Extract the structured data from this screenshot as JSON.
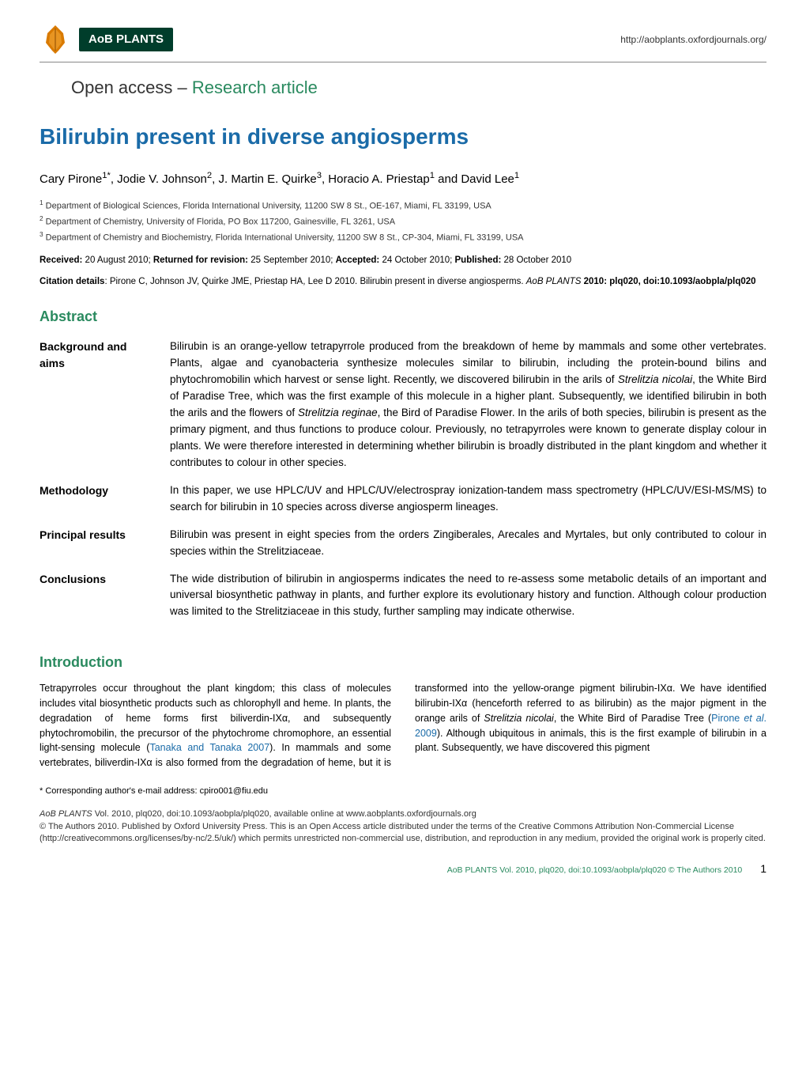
{
  "header": {
    "journal_badge": "AoB PLANTS",
    "url": "http://aobplants.oxfordjournals.org/",
    "section_prefix": "Open access – ",
    "section_highlight": "Research article",
    "leaf_colors": {
      "outer": "#d97a00",
      "inner": "#e89522"
    }
  },
  "article": {
    "title": "Bilirubin present in diverse angiosperms",
    "authors_html": "Cary Pirone<sup>1*</sup>, Jodie V. Johnson<sup>2</sup>, J. Martin E. Quirke<sup>3</sup>, Horacio A. Priestap<sup>1</sup> and David Lee<sup>1</sup>",
    "affiliations": [
      "1  Department of Biological Sciences, Florida International University, 11200 SW 8 St., OE-167, Miami, FL 33199, USA",
      "2  Department of Chemistry, University of Florida, PO Box 117200, Gainesville, FL 3261, USA",
      "3  Department of Chemistry and Biochemistry, Florida International University, 11200 SW 8 St., CP-304, Miami, FL 33199, USA"
    ],
    "dates": {
      "received": "20 August 2010",
      "returned": "25 September 2010",
      "accepted": "24 October 2010",
      "published": "28 October 2010"
    },
    "citation_prefix": "Citation details",
    "citation_text": ": Pirone C, Johnson JV, Quirke JME, Priestap HA, Lee D 2010. Bilirubin present in diverse angiosperms. ",
    "citation_journal": "AoB PLANTS",
    "citation_suffix": " 2010: plq020, doi:10.1093/aobpla/plq020"
  },
  "abstract": {
    "heading": "Abstract",
    "rows": [
      {
        "label": "Background and aims",
        "content": "Bilirubin is an orange-yellow tetrapyrrole produced from the breakdown of heme by mammals and some other vertebrates. Plants, algae and cyanobacteria synthesize molecules similar to bilirubin, including the protein-bound bilins and phytochromobilin which harvest or sense light. Recently, we discovered bilirubin in the arils of Strelitzia nicolai, the White Bird of Paradise Tree, which was the first example of this molecule in a higher plant. Subsequently, we identified bilirubin in both the arils and the flowers of Strelitzia reginae, the Bird of Paradise Flower. In the arils of both species, bilirubin is present as the primary pigment, and thus functions to produce colour. Previously, no tetrapyrroles were known to generate display colour in plants. We were therefore interested in determining whether bilirubin is broadly distributed in the plant kingdom and whether it contributes to colour in other species."
      },
      {
        "label": "Methodology",
        "content": "In this paper, we use HPLC/UV and HPLC/UV/electrospray ionization-tandem mass spectrometry (HPLC/UV/ESI-MS/MS) to search for bilirubin in 10 species across diverse angiosperm lineages."
      },
      {
        "label": "Principal results",
        "content": "Bilirubin was present in eight species from the orders Zingiberales, Arecales and Myrtales, but only contributed to colour in species within the Strelitziaceae."
      },
      {
        "label": "Conclusions",
        "content": "The wide distribution of bilirubin in angiosperms indicates the need to re-assess some metabolic details of an important and universal biosynthetic pathway in plants, and further explore its evolutionary history and function. Although colour production was limited to the Strelitziaceae in this study, further sampling may indicate otherwise."
      }
    ]
  },
  "intro": {
    "heading": "Introduction",
    "body_html": "Tetrapyrroles occur throughout the plant kingdom; this class of molecules includes vital biosynthetic products such as chlorophyll and heme. In plants, the degradation of heme forms first biliverdin-IXα, and subsequently phytochromobilin, the precursor of the phytochrome chromophore, an essential light-sensing molecule (<span class=\"ref-link\">Tanaka and Tanaka 2007</span>). In mammals and some vertebrates, biliverdin-IXα is also formed from the degradation of heme, but it is transformed into the yellow-orange pigment bilirubin-IXα. We have identified bilirubin-IXα (henceforth referred to as bilirubin) as the major pigment in the orange arils of <span class=\"italic\">Strelitzia nicolai</span>, the White Bird of Paradise Tree (<span class=\"ref-link\">Pirone <span class=\"italic\">et al</span>. 2009</span>). Although ubiquitous in animals, this is the first example of bilirubin in a plant. Subsequently, we have discovered this pigment"
  },
  "corresponding": "* Corresponding author's e-mail address: cpiro001@fiu.edu",
  "footer_citation": "AoB PLANTS Vol. 2010, plq020, doi:10.1093/aobpla/plq020, available online at www.aobplants.oxfordjournals.org\n© The Authors 2010. Published by Oxford University Press. This is an Open Access article distributed under the terms of the Creative Commons Attribution Non-Commercial License (http://creativecommons.org/licenses/by-nc/2.5/uk/) which permits unrestricted non-commercial use, distribution, and reproduction in any medium, provided the original work is properly cited.",
  "page_footer": {
    "text": "AoB PLANTS Vol. 2010, plq020, doi:10.1093/aobpla/plq020 © The Authors 2010",
    "page_num": "1"
  },
  "colors": {
    "title_blue": "#1a6ba8",
    "heading_green": "#2a8a5f",
    "badge_bg": "#003d2b",
    "link_blue": "#1a6ba8"
  }
}
